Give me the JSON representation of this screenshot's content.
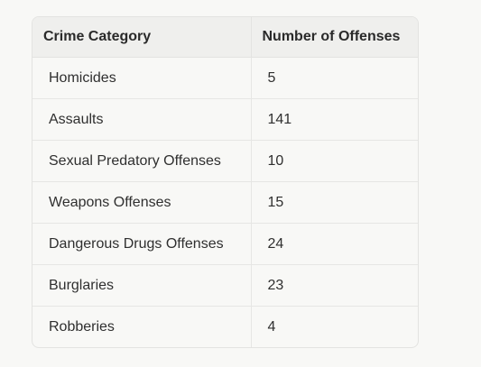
{
  "table": {
    "headers": [
      "Crime Category",
      "Number of Offenses"
    ],
    "rows": [
      [
        "Homicides",
        "5"
      ],
      [
        "Assaults",
        "141"
      ],
      [
        "Sexual Predatory Offenses",
        "10"
      ],
      [
        "Weapons Offenses",
        "15"
      ],
      [
        "Dangerous Drugs Offenses",
        "24"
      ],
      [
        "Burglaries",
        "23"
      ],
      [
        "Robberies",
        "4"
      ]
    ]
  }
}
